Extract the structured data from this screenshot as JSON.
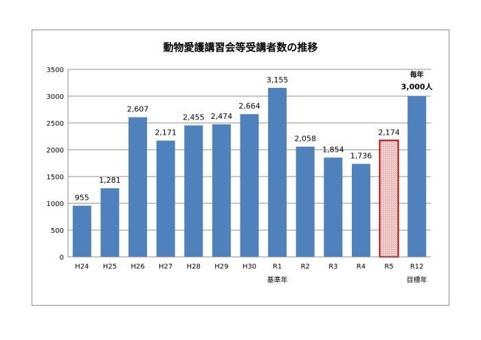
{
  "chart_data": {
    "type": "bar",
    "title": "動物愛護講習会等受講者数の推移",
    "categories": [
      "H24",
      "H25",
      "H26",
      "H27",
      "H28",
      "H29",
      "H30",
      "R1",
      "R2",
      "R3",
      "R4",
      "R5",
      "R12"
    ],
    "values": [
      955,
      1281,
      2607,
      2171,
      2455,
      2474,
      2664,
      3155,
      2058,
      1854,
      1736,
      2174,
      3000
    ],
    "data_labels": [
      "955",
      "1,281",
      "2,607",
      "2,171",
      "2,455",
      "2,474",
      "2,664",
      "3,155",
      "2,058",
      "1,854",
      "1,736",
      "2,174",
      "毎年\n3,000人"
    ],
    "category_notes": {
      "R1": "基準年",
      "R12": "目標年"
    },
    "highlight_category": "R5",
    "ylim": [
      0,
      3500
    ],
    "yticks": [
      0,
      500,
      1000,
      1500,
      2000,
      2500,
      3000,
      3500
    ],
    "grid": true,
    "legend": "none",
    "xlabel": "",
    "ylabel": "",
    "colors": {
      "bar": "#4f81bd",
      "highlight_fill": "#e6b8b7",
      "highlight_border": "#c00000",
      "grid": "#8c8c8c"
    }
  }
}
